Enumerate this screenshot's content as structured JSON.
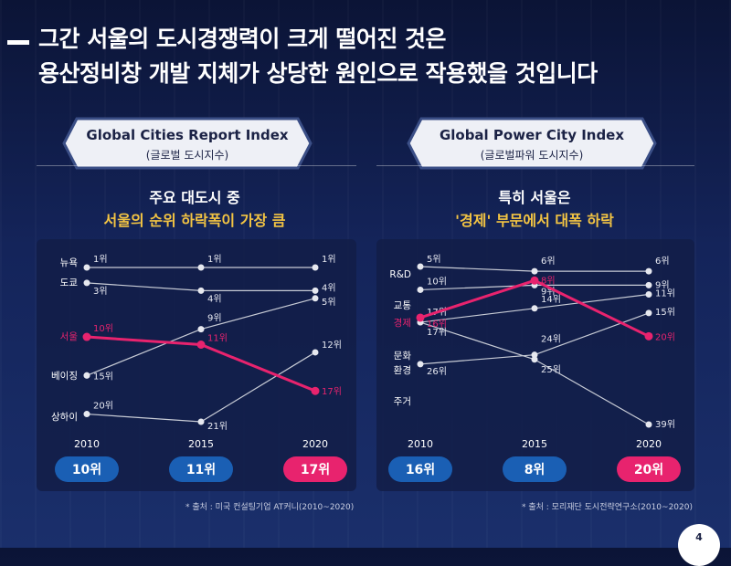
{
  "title": {
    "line1": "그간 서울의 도시경쟁력이 크게 떨어진 것은",
    "line2": "용산정비창 개발 지체가 상당한 원인으로 작용했을 것입니다"
  },
  "left": {
    "ribbon_title": "Global Cities Report Index",
    "ribbon_sub": "(글로벌 도시지수)",
    "subtitle1": "주요 대도시 중",
    "subtitle2": "서울의 순위 하락폭이 가장 큼",
    "source": "* 출처 : 미국 컨설팅기업 AT커니(2010~2020)"
  },
  "right": {
    "ribbon_title": "Global Power City Index",
    "ribbon_sub": "(글로벌파워 도시지수)",
    "subtitle1": "특히 서울은",
    "subtitle2": "'경제' 부문에서 대폭 하락",
    "source": "* 출처 : 모리재단 도시전략연구소(2010~2020)"
  },
  "page_number": "4",
  "colors": {
    "highlight": "#e8236e",
    "accent_yellow": "#f3c443",
    "pill_blue": "#1a5fb4",
    "grey_line": "#c8ccd6"
  },
  "chart_data": [
    {
      "type": "line",
      "title": "Global Cities Report Index",
      "x": [
        "2010",
        "2015",
        "2020"
      ],
      "y_axis": "rank (inverted)",
      "series": [
        {
          "name": "뉴욕",
          "values": [
            1,
            1,
            1
          ],
          "labels": [
            "1위",
            "1위",
            "1위"
          ],
          "highlight": false
        },
        {
          "name": "도쿄",
          "values": [
            3,
            4,
            4
          ],
          "labels": [
            "3위",
            "4위",
            "4위"
          ],
          "highlight": false
        },
        {
          "name": "",
          "values": [
            15,
            9,
            5
          ],
          "labels": [
            "",
            "9위",
            "5위"
          ],
          "highlight": false
        },
        {
          "name": "서울",
          "values": [
            10,
            11,
            17
          ],
          "labels": [
            "10위",
            "11위",
            "17위"
          ],
          "highlight": true
        },
        {
          "name": "베이징",
          "values": [
            15,
            null,
            null
          ],
          "labels": [
            "15위",
            "",
            ""
          ],
          "highlight": false
        },
        {
          "name": "상하이",
          "values": [
            20,
            21,
            12
          ],
          "labels": [
            "20위",
            "21위",
            "12위"
          ],
          "highlight": false
        }
      ],
      "pills": [
        "10위",
        "11위",
        "17위"
      ]
    },
    {
      "type": "line",
      "title": "Global Power City Index",
      "x": [
        "2010",
        "2015",
        "2020"
      ],
      "y_axis": "rank (inverted)",
      "series": [
        {
          "name": "R&D",
          "values": [
            5,
            6,
            6
          ],
          "labels": [
            "5위",
            "6위",
            "6위"
          ],
          "highlight": false
        },
        {
          "name": "교통",
          "values": [
            10,
            9,
            9
          ],
          "labels": [
            "10위",
            "9위",
            "9위"
          ],
          "highlight": false
        },
        {
          "name": "경제",
          "values": [
            16,
            8,
            20
          ],
          "labels": [
            "16위",
            "8위",
            "20위"
          ],
          "highlight": true
        },
        {
          "name": "문화",
          "values": [
            17,
            14,
            11
          ],
          "labels": [
            "17위",
            "14위",
            "11위"
          ],
          "highlight": false
        },
        {
          "name": "환경",
          "values": [
            17,
            25,
            39
          ],
          "labels": [
            "17위",
            "25위",
            "39위"
          ],
          "highlight": false
        },
        {
          "name": "주거",
          "values": [
            26,
            24,
            15
          ],
          "labels": [
            "26위",
            "24위",
            "15위"
          ],
          "highlight": false
        }
      ],
      "pills": [
        "16위",
        "8위",
        "20위"
      ]
    }
  ]
}
